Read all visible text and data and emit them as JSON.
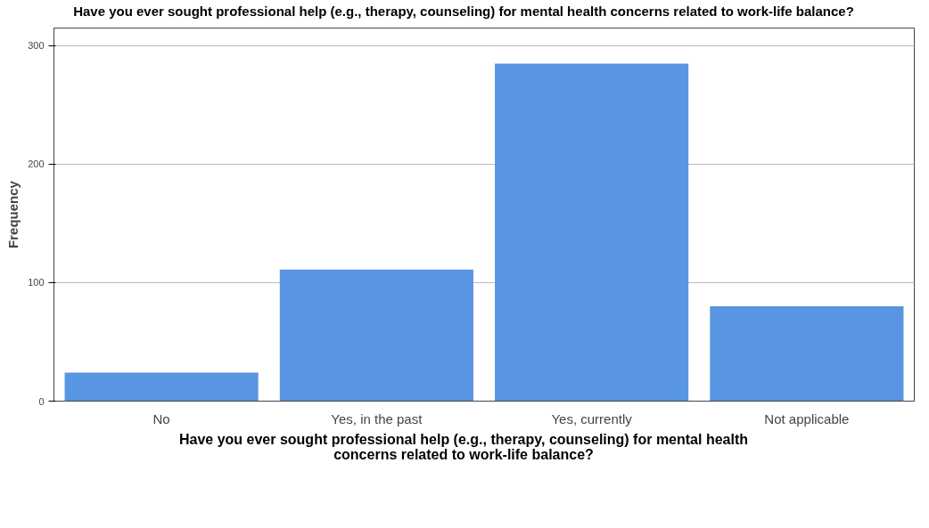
{
  "chart_data": {
    "type": "bar",
    "title": "Have you ever sought professional help (e.g., therapy, counseling) for mental health concerns related to work-life balance?",
    "xlabel": "Have you ever sought professional help (e.g., therapy, counseling) for mental health concerns related to work-life balance?",
    "ylabel": "Frequency",
    "categories": [
      "No",
      "Yes, in the past",
      "Yes, currently",
      "Not applicable"
    ],
    "values": [
      24,
      111,
      285,
      80
    ],
    "color": "#5895e3",
    "ylim": [
      0,
      315
    ],
    "yticks": [
      0,
      100,
      200,
      300
    ],
    "grid": "y"
  }
}
